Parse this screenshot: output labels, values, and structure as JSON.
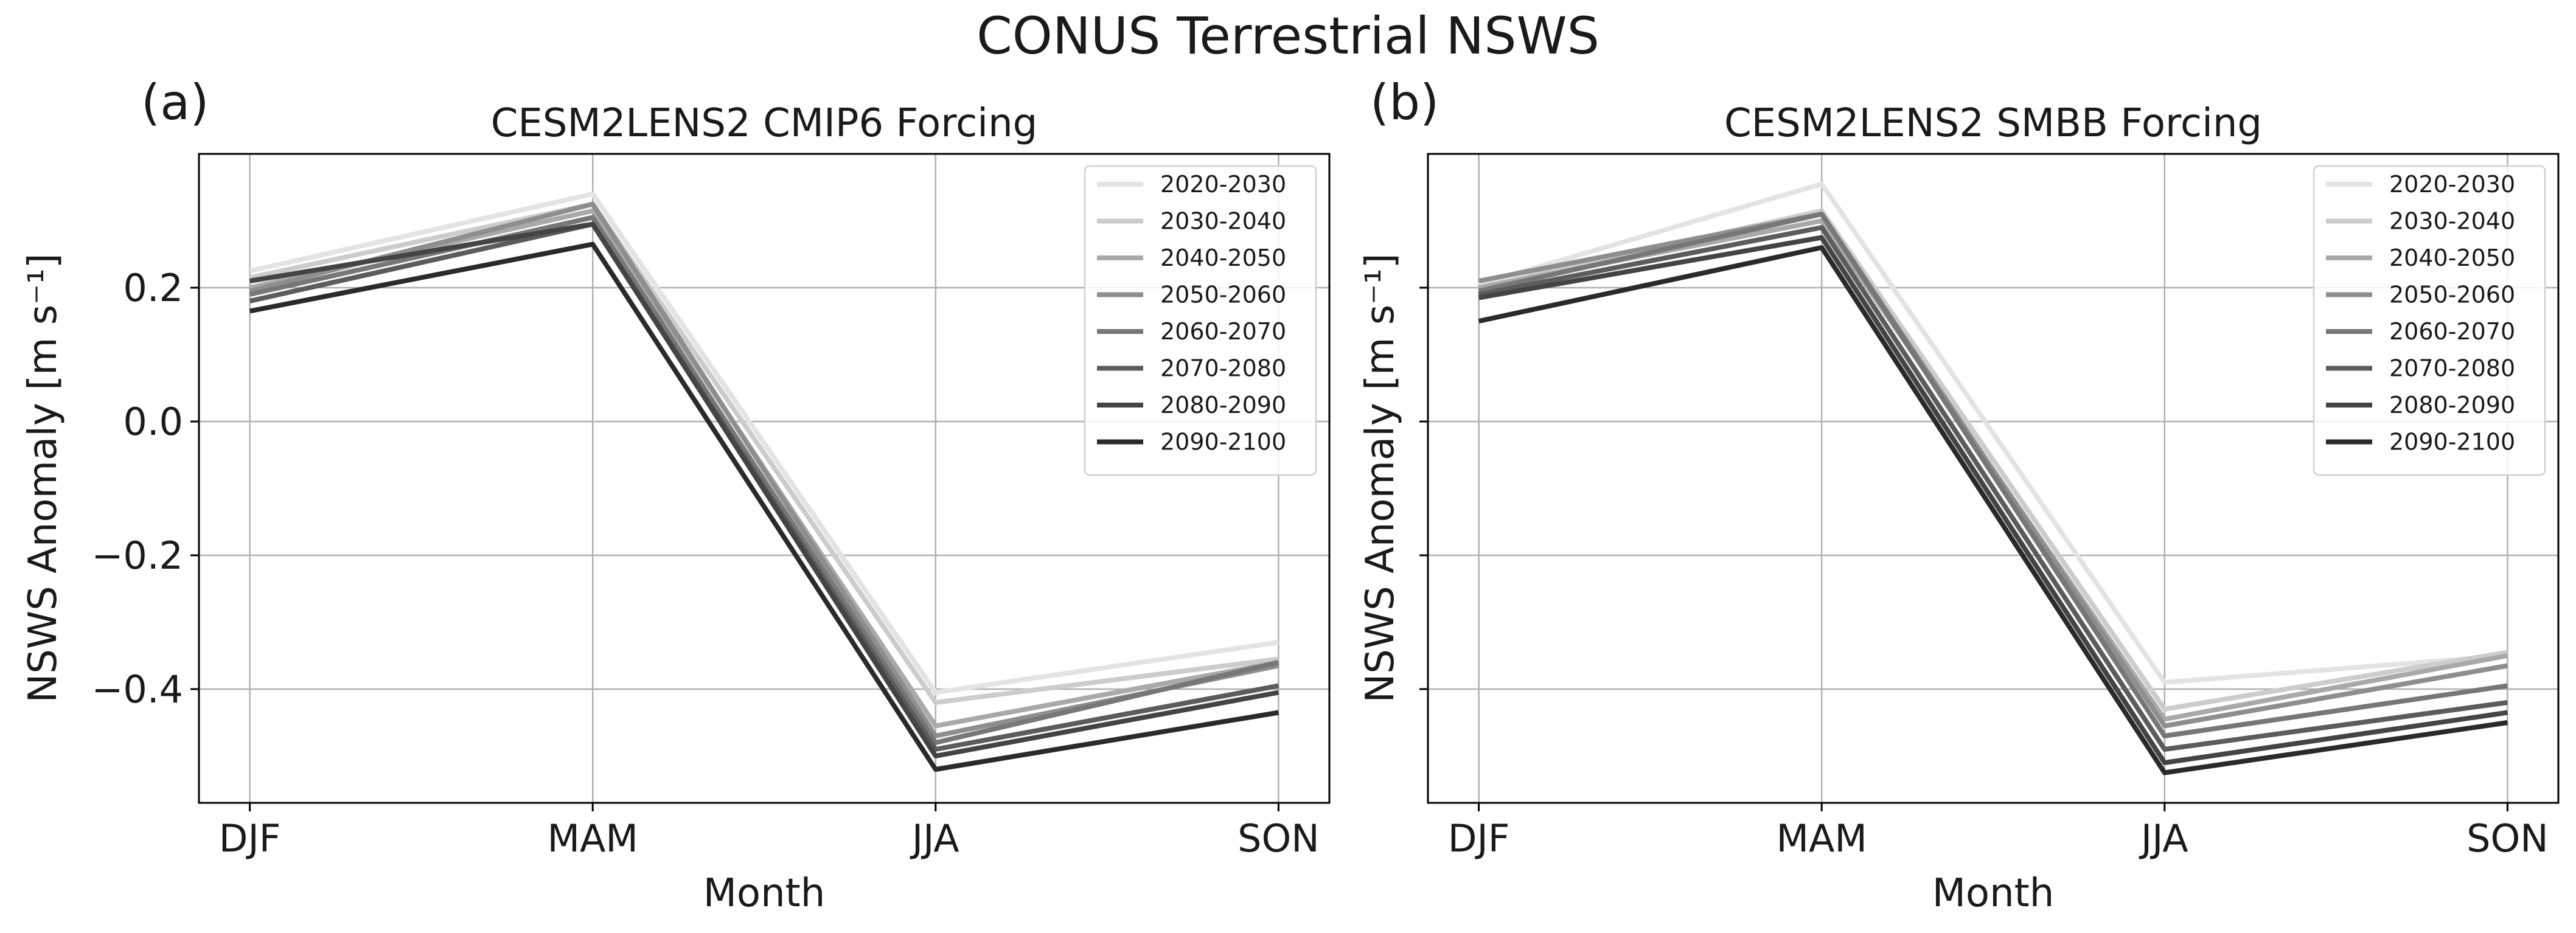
{
  "figure": {
    "suptitle": "CONUS Terrestrial NSWS"
  },
  "chart_data": [
    {
      "panel_label": "(a)",
      "type": "line",
      "title": "CESM2LENS2 CMIP6 Forcing",
      "xlabel": "Month",
      "ylabel": "NSWS Anomaly [m s⁻¹]",
      "categories": [
        "DJF",
        "MAM",
        "JJA",
        "SON"
      ],
      "ylim": [
        -0.57,
        0.4
      ],
      "yticks": [
        0.2,
        0.0,
        -0.2,
        -0.4
      ],
      "ytick_labels": [
        "0.2",
        "0.0",
        "−0.2",
        "−0.4"
      ],
      "show_ytick_labels": true,
      "grid": true,
      "legend_position": "top-right",
      "series": [
        {
          "name": "2020-2030",
          "color": "#e3e3e3",
          "values": [
            0.225,
            0.34,
            -0.405,
            -0.33
          ]
        },
        {
          "name": "2030-2040",
          "color": "#cccccc",
          "values": [
            0.215,
            0.325,
            -0.42,
            -0.355
          ]
        },
        {
          "name": "2040-2050",
          "color": "#a9a9a9",
          "values": [
            0.2,
            0.315,
            -0.455,
            -0.36
          ]
        },
        {
          "name": "2050-2060",
          "color": "#8e8e8e",
          "values": [
            0.195,
            0.325,
            -0.47,
            -0.365
          ]
        },
        {
          "name": "2060-2070",
          "color": "#777777",
          "values": [
            0.19,
            0.305,
            -0.48,
            -0.36
          ]
        },
        {
          "name": "2070-2080",
          "color": "#5c5c5c",
          "values": [
            0.18,
            0.295,
            -0.49,
            -0.395
          ]
        },
        {
          "name": "2080-2090",
          "color": "#444444",
          "values": [
            0.21,
            0.295,
            -0.5,
            -0.405
          ]
        },
        {
          "name": "2090-2100",
          "color": "#2a2a2a",
          "values": [
            0.165,
            0.265,
            -0.52,
            -0.435
          ]
        }
      ]
    },
    {
      "panel_label": "(b)",
      "type": "line",
      "title": "CESM2LENS2 SMBB Forcing",
      "xlabel": "Month",
      "ylabel": "NSWS Anomaly [m s⁻¹]",
      "categories": [
        "DJF",
        "MAM",
        "JJA",
        "SON"
      ],
      "ylim": [
        -0.57,
        0.4
      ],
      "yticks": [
        0.2,
        0.0,
        -0.2,
        -0.4
      ],
      "ytick_labels": [
        "",
        "",
        "",
        ""
      ],
      "show_ytick_labels": false,
      "grid": true,
      "legend_position": "top-right",
      "series": [
        {
          "name": "2020-2030",
          "color": "#e3e3e3",
          "values": [
            0.205,
            0.355,
            -0.39,
            -0.35
          ]
        },
        {
          "name": "2030-2040",
          "color": "#cccccc",
          "values": [
            0.2,
            0.315,
            -0.43,
            -0.345
          ]
        },
        {
          "name": "2040-2050",
          "color": "#a9a9a9",
          "values": [
            0.2,
            0.3,
            -0.445,
            -0.35
          ]
        },
        {
          "name": "2050-2060",
          "color": "#8e8e8e",
          "values": [
            0.21,
            0.31,
            -0.455,
            -0.365
          ]
        },
        {
          "name": "2060-2070",
          "color": "#777777",
          "values": [
            0.195,
            0.31,
            -0.47,
            -0.395
          ]
        },
        {
          "name": "2070-2080",
          "color": "#5c5c5c",
          "values": [
            0.19,
            0.29,
            -0.49,
            -0.42
          ]
        },
        {
          "name": "2080-2090",
          "color": "#444444",
          "values": [
            0.185,
            0.275,
            -0.51,
            -0.435
          ]
        },
        {
          "name": "2090-2100",
          "color": "#2a2a2a",
          "values": [
            0.15,
            0.26,
            -0.525,
            -0.45
          ]
        }
      ]
    }
  ]
}
